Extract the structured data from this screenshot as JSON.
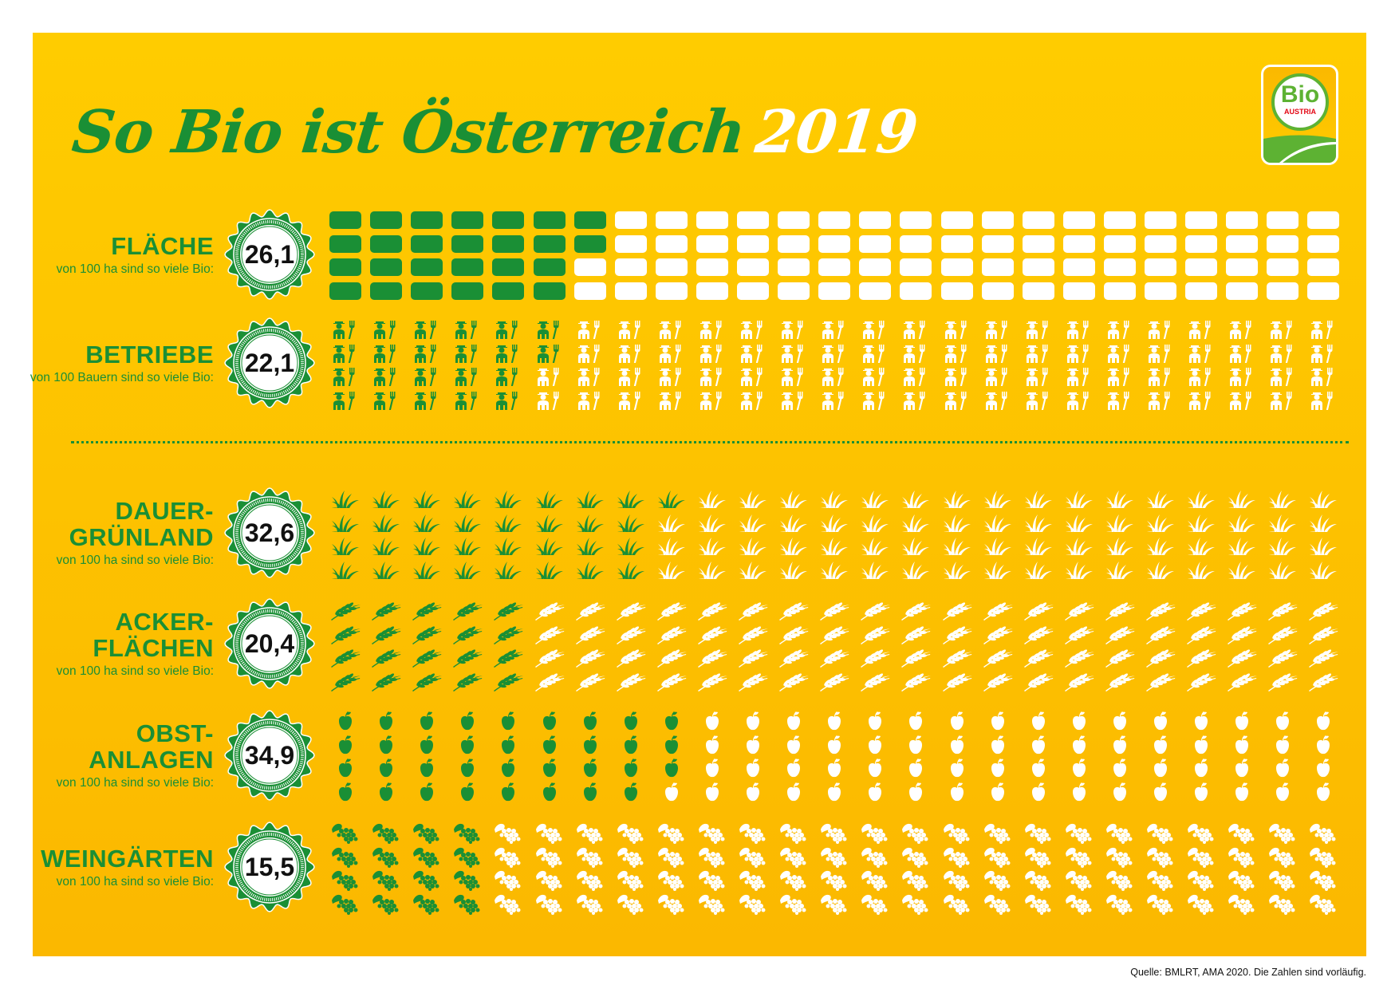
{
  "title": {
    "main": "So Bio ist Österreich",
    "year": "2019"
  },
  "logo": {
    "word": "Bio",
    "sub": "AUSTRIA"
  },
  "colors": {
    "green": "#1A8F35",
    "white": "#FFFFFF",
    "background_top": "#FFCC00",
    "background_bottom": "#FBB800"
  },
  "source": "Quelle: BMLRT, AMA 2020. Die Zahlen sind vorläufig.",
  "chart_data": {
    "type": "pictogram",
    "title": "So Bio ist Österreich 2019",
    "grid": {
      "columns": 25,
      "rows": 4,
      "total": 100,
      "fill_order": "column-major, top to bottom"
    },
    "sections": [
      {
        "title": "FLÄCHE",
        "subtitle": "von 100 ha sind so viele Bio:",
        "value_label": "26,1",
        "value": 26.1,
        "icon": "rectangle-icon"
      },
      {
        "title": "BETRIEBE",
        "subtitle": "von 100 Bauern sind so viele Bio:",
        "value_label": "22,1",
        "value": 22.1,
        "icon": "farmer-icon"
      },
      {
        "title": "DAUER-\nGRÜNLAND",
        "subtitle": "von 100 ha sind so viele Bio:",
        "value_label": "32,6",
        "value": 32.6,
        "icon": "grass-icon"
      },
      {
        "title": "ACKER-\nFLÄCHEN",
        "subtitle": "von 100 ha sind so viele Bio:",
        "value_label": "20,4",
        "value": 20.4,
        "icon": "wheat-icon"
      },
      {
        "title": "OBST-\nANLAGEN",
        "subtitle": "von 100 ha sind so viele Bio:",
        "value_label": "34,9",
        "value": 34.9,
        "icon": "apple-icon"
      },
      {
        "title": "WEINGÄRTEN",
        "subtitle": "von 100 ha sind so viele Bio:",
        "value_label": "15,5",
        "value": 15.5,
        "icon": "grapes-icon"
      }
    ]
  }
}
